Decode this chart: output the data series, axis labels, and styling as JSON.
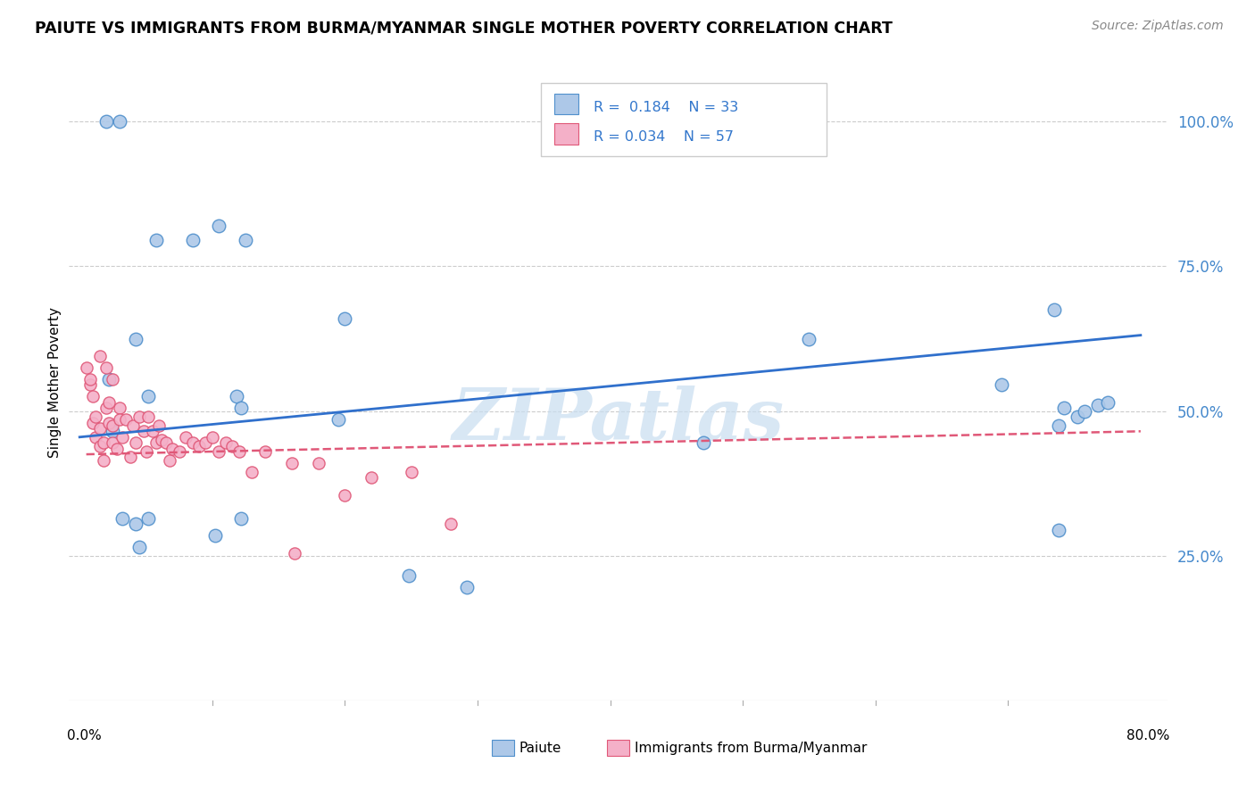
{
  "title": "PAIUTE VS IMMIGRANTS FROM BURMA/MYANMAR SINGLE MOTHER POVERTY CORRELATION CHART",
  "source": "Source: ZipAtlas.com",
  "ylabel": "Single Mother Poverty",
  "legend_r_paiute": "0.184",
  "legend_n_paiute": "33",
  "legend_r_burma": "0.034",
  "legend_n_burma": "57",
  "paiute_color": "#adc8e8",
  "paiute_edge_color": "#5090cc",
  "burma_color": "#f4b0c8",
  "burma_edge_color": "#e05878",
  "paiute_line_color": "#3070cc",
  "burma_line_color": "#e05878",
  "watermark": "ZIPatlas",
  "watermark_color": "#c8ddf0",
  "paiute_x": [
    0.02,
    0.03,
    0.058,
    0.085,
    0.105,
    0.125,
    0.2,
    0.022,
    0.025,
    0.042,
    0.052,
    0.118,
    0.122,
    0.195,
    0.47,
    0.55,
    0.695,
    0.735,
    0.742,
    0.752,
    0.768,
    0.042,
    0.045,
    0.102,
    0.122,
    0.248,
    0.738,
    0.775,
    0.032,
    0.052,
    0.292,
    0.738,
    0.758
  ],
  "paiute_y": [
    1.0,
    1.0,
    0.795,
    0.795,
    0.82,
    0.795,
    0.66,
    0.555,
    0.465,
    0.625,
    0.525,
    0.525,
    0.505,
    0.485,
    0.445,
    0.625,
    0.545,
    0.675,
    0.505,
    0.49,
    0.51,
    0.305,
    0.265,
    0.285,
    0.315,
    0.215,
    0.295,
    0.515,
    0.315,
    0.315,
    0.195,
    0.475,
    0.5
  ],
  "burma_x": [
    0.005,
    0.008,
    0.01,
    0.012,
    0.015,
    0.018,
    0.008,
    0.01,
    0.012,
    0.015,
    0.018,
    0.02,
    0.022,
    0.022,
    0.025,
    0.025,
    0.028,
    0.03,
    0.03,
    0.032,
    0.035,
    0.038,
    0.04,
    0.042,
    0.045,
    0.048,
    0.05,
    0.052,
    0.055,
    0.058,
    0.06,
    0.062,
    0.065,
    0.068,
    0.07,
    0.075,
    0.08,
    0.085,
    0.09,
    0.095,
    0.1,
    0.105,
    0.11,
    0.115,
    0.12,
    0.13,
    0.14,
    0.16,
    0.162,
    0.18,
    0.2,
    0.22,
    0.25,
    0.28,
    0.015,
    0.02,
    0.025
  ],
  "burma_y": [
    0.575,
    0.545,
    0.48,
    0.455,
    0.44,
    0.415,
    0.555,
    0.525,
    0.49,
    0.47,
    0.445,
    0.505,
    0.515,
    0.48,
    0.475,
    0.445,
    0.435,
    0.505,
    0.485,
    0.455,
    0.485,
    0.42,
    0.475,
    0.445,
    0.49,
    0.465,
    0.43,
    0.49,
    0.465,
    0.445,
    0.475,
    0.45,
    0.445,
    0.415,
    0.435,
    0.43,
    0.455,
    0.445,
    0.44,
    0.445,
    0.455,
    0.43,
    0.445,
    0.44,
    0.43,
    0.395,
    0.43,
    0.41,
    0.255,
    0.41,
    0.355,
    0.385,
    0.395,
    0.305,
    0.595,
    0.575,
    0.555
  ],
  "xlim_data_min": 0.0,
  "xlim_data_max": 0.8,
  "ylim_data_min": 0.0,
  "ylim_data_max": 1.05,
  "ytick_values": [
    0.25,
    0.5,
    0.75,
    1.0
  ]
}
